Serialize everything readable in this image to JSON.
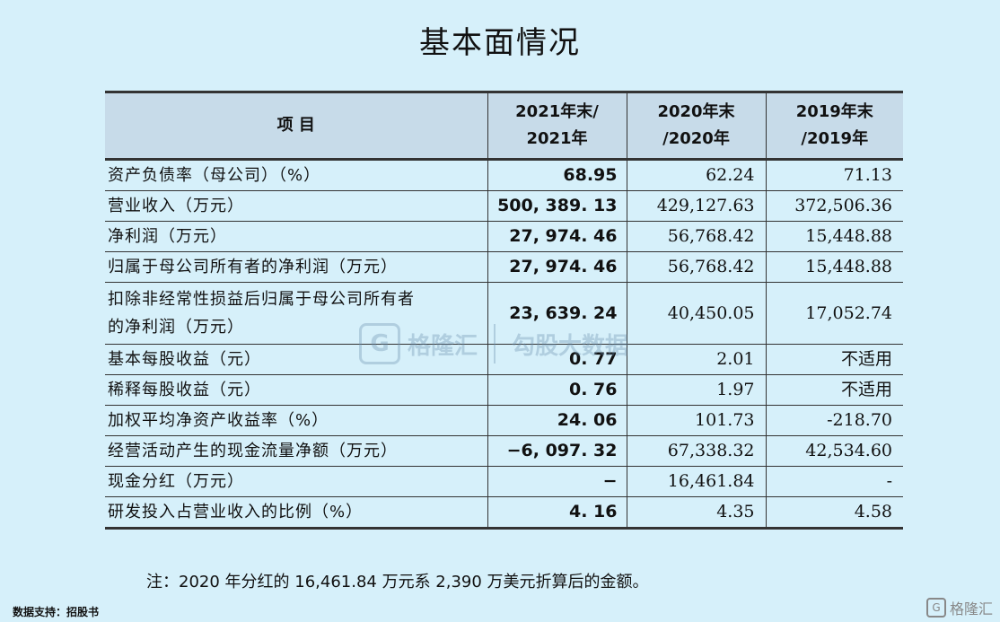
{
  "title": "基本面情况",
  "table": {
    "headers": {
      "item": "项    目",
      "c2021_l1": "2021年末/",
      "c2021_l2": "2021年",
      "c2020_l1": "2020年末",
      "c2020_l2": "/2020年",
      "c2019_l1": "2019年末",
      "c2019_l2": "/2019年"
    },
    "rows": [
      {
        "item": "资产负债率（母公司）（%）",
        "v2021": "68.95",
        "v2020": "62.24",
        "v2019": "71.13"
      },
      {
        "item": "营业收入（万元）",
        "v2021": "500, 389. 13",
        "v2020": "429,127.63",
        "v2019": "372,506.36"
      },
      {
        "item": "净利润（万元）",
        "v2021": "27, 974. 46",
        "v2020": "56,768.42",
        "v2019": "15,448.88"
      },
      {
        "item": "归属于母公司所有者的净利润（万元）",
        "v2021": "27, 974. 46",
        "v2020": "56,768.42",
        "v2019": "15,448.88"
      },
      {
        "item_l1": "扣除非经常性损益后归属于母公司所有者",
        "item_l2": "的净利润（万元）",
        "v2021": "23, 639. 24",
        "v2020": "40,450.05",
        "v2019": "17,052.74"
      },
      {
        "item": "基本每股收益（元）",
        "v2021": "0. 77",
        "v2020": "2.01",
        "v2019": "不适用"
      },
      {
        "item": "稀释每股收益（元）",
        "v2021": "0. 76",
        "v2020": "1.97",
        "v2019": "不适用"
      },
      {
        "item": "加权平均净资产收益率（%）",
        "v2021": "24. 06",
        "v2020": "101.73",
        "v2019": "-218.70"
      },
      {
        "item": "经营活动产生的现金流量净额（万元）",
        "v2021": "−6, 097. 32",
        "v2020": "67,338.32",
        "v2019": "42,534.60"
      },
      {
        "item": "现金分红（万元）",
        "v2021": "−",
        "v2020": "16,461.84",
        "v2019": "-"
      },
      {
        "item": "研发投入占营业收入的比例（%）",
        "v2021": "4. 16",
        "v2020": "4.35",
        "v2019": "4.58"
      }
    ]
  },
  "note": "注：2020 年分红的 16,461.84 万元系 2,390 万美元折算后的金额。",
  "source": "数据支持：招股书",
  "watermark": {
    "logo_letter": "G",
    "brand": "格隆汇",
    "brand2": "勾股大数据"
  },
  "corner_logo": {
    "letter": "G",
    "text": "格隆汇"
  }
}
